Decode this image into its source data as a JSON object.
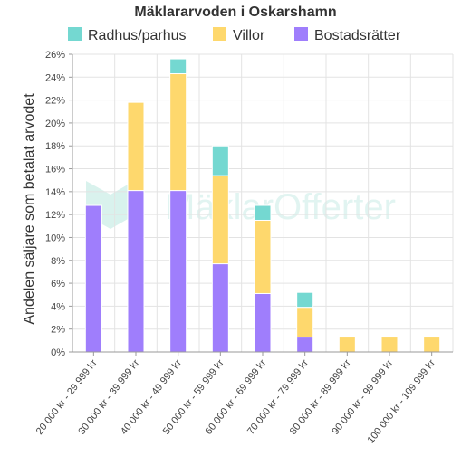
{
  "chart_data": {
    "type": "bar",
    "stacked": true,
    "title": "Mäklararvoden i Oskarshamn",
    "ylabel": "Andelen säljare som betalat arvodet",
    "xlabel": "",
    "ylim": [
      0,
      26
    ],
    "ytick_step": 2,
    "ytick_labels": [
      "0%",
      "2%",
      "4%",
      "6%",
      "8%",
      "10%",
      "12%",
      "14%",
      "16%",
      "18%",
      "20%",
      "22%",
      "24%",
      "26%"
    ],
    "grid": true,
    "legend_position": "top",
    "categories": [
      "20 000 kr - 29 999 kr",
      "30 000 kr - 39 999 kr",
      "40 000 kr - 49 999 kr",
      "50 000 kr - 59 999 kr",
      "60 000 kr - 69 999 kr",
      "70 000 kr - 79 999 kr",
      "80 000 kr - 89 999 kr",
      "90 000 kr - 99 999 kr",
      "100 000 kr - 109 999 kr"
    ],
    "series": [
      {
        "name": "Bostadsrätter",
        "color": "#9f7efc",
        "values": [
          12.8,
          14.1,
          14.1,
          7.7,
          5.1,
          1.3,
          0,
          0,
          0
        ]
      },
      {
        "name": "Villor",
        "color": "#fed86d",
        "values": [
          0,
          7.7,
          10.2,
          7.7,
          6.4,
          2.6,
          1.3,
          1.3,
          1.3
        ]
      },
      {
        "name": "Radhus/parhus",
        "color": "#74d8d1",
        "values": [
          0,
          0,
          1.3,
          2.6,
          1.3,
          1.3,
          0,
          0,
          0
        ]
      }
    ],
    "legend_order": [
      "Radhus/parhus",
      "Villor",
      "Bostadsrätter"
    ]
  },
  "watermark": {
    "text": "MäklarOfferter",
    "color": "#cfeee8"
  }
}
